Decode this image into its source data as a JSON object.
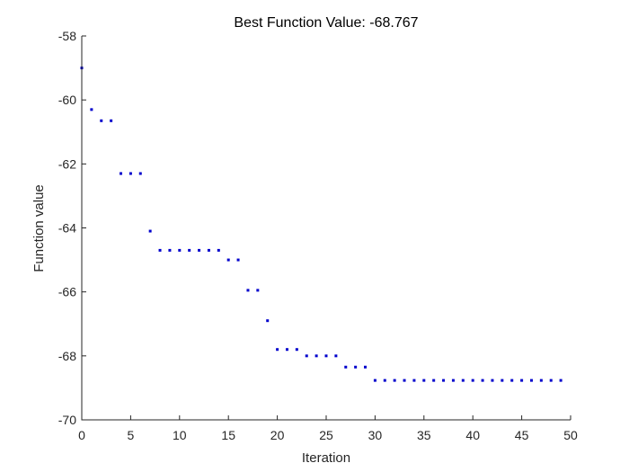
{
  "chart_data": {
    "type": "scatter",
    "title": "Best Function Value: -68.767",
    "xlabel": "Iteration",
    "ylabel": "Function value",
    "xlim": [
      0,
      50
    ],
    "ylim": [
      -70,
      -58
    ],
    "xticks": [
      0,
      5,
      10,
      15,
      20,
      25,
      30,
      35,
      40,
      45,
      50
    ],
    "yticks": [
      -70,
      -68,
      -66,
      -64,
      -62,
      -60,
      -58
    ],
    "grid": false,
    "marker_color": "#0000cc",
    "series": [
      {
        "x": [
          0,
          1,
          2,
          3,
          4,
          5,
          6,
          7,
          8,
          9,
          10,
          11,
          12,
          13,
          14,
          15,
          16,
          17,
          18,
          19,
          20,
          21,
          22,
          23,
          24,
          25,
          26,
          27,
          28,
          29,
          30,
          31,
          32,
          33,
          34,
          35,
          36,
          37,
          38,
          39,
          40,
          41,
          42,
          43,
          44,
          45,
          46,
          47,
          48,
          49
        ],
        "y": [
          -59.0,
          -60.3,
          -60.65,
          -60.65,
          -62.3,
          -62.3,
          -62.3,
          -64.1,
          -64.7,
          -64.7,
          -64.7,
          -64.7,
          -64.7,
          -64.7,
          -64.7,
          -65.0,
          -65.0,
          -65.95,
          -65.95,
          -66.9,
          -67.8,
          -67.8,
          -67.8,
          -68.0,
          -68.0,
          -68.0,
          -68.0,
          -68.35,
          -68.35,
          -68.35,
          -68.767,
          -68.767,
          -68.767,
          -68.767,
          -68.767,
          -68.767,
          -68.767,
          -68.767,
          -68.767,
          -68.767,
          -68.767,
          -68.767,
          -68.767,
          -68.767,
          -68.767,
          -68.767,
          -68.767,
          -68.767,
          -68.767,
          -68.767
        ]
      }
    ]
  }
}
